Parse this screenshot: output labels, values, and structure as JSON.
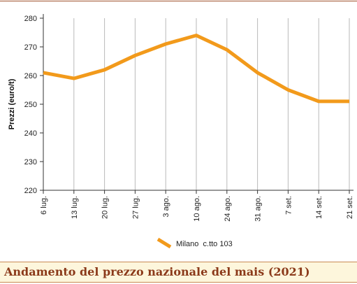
{
  "caption": "Andamento del prezzo nazionale del mais (2021)",
  "colors": {
    "series": "#f29a1b",
    "grid": "#b9b9b9",
    "axis": "#333333",
    "caption_text": "#8b3a1a",
    "caption_bg": "#fdf6dc",
    "rule": "#a0522d"
  },
  "chart_data": {
    "type": "line",
    "title": "",
    "xlabel": "",
    "ylabel": "Prezzi (euro/t)",
    "categories": [
      "6 lug.",
      "13 lug.",
      "20 lug.",
      "27 lug.",
      "3 ago.",
      "10 ago.",
      "24 ago.",
      "31 ago.",
      "7 set.",
      "14 set.",
      "21 set."
    ],
    "series": [
      {
        "name": "Milano  c.tto 103",
        "values": [
          261,
          259,
          262,
          267,
          271,
          274,
          269,
          261,
          255,
          251,
          251
        ]
      }
    ],
    "ylim": [
      220,
      280
    ],
    "yticks": [
      220,
      230,
      240,
      250,
      260,
      270,
      280
    ],
    "grid": "vertical",
    "legend": "bottom-center"
  }
}
